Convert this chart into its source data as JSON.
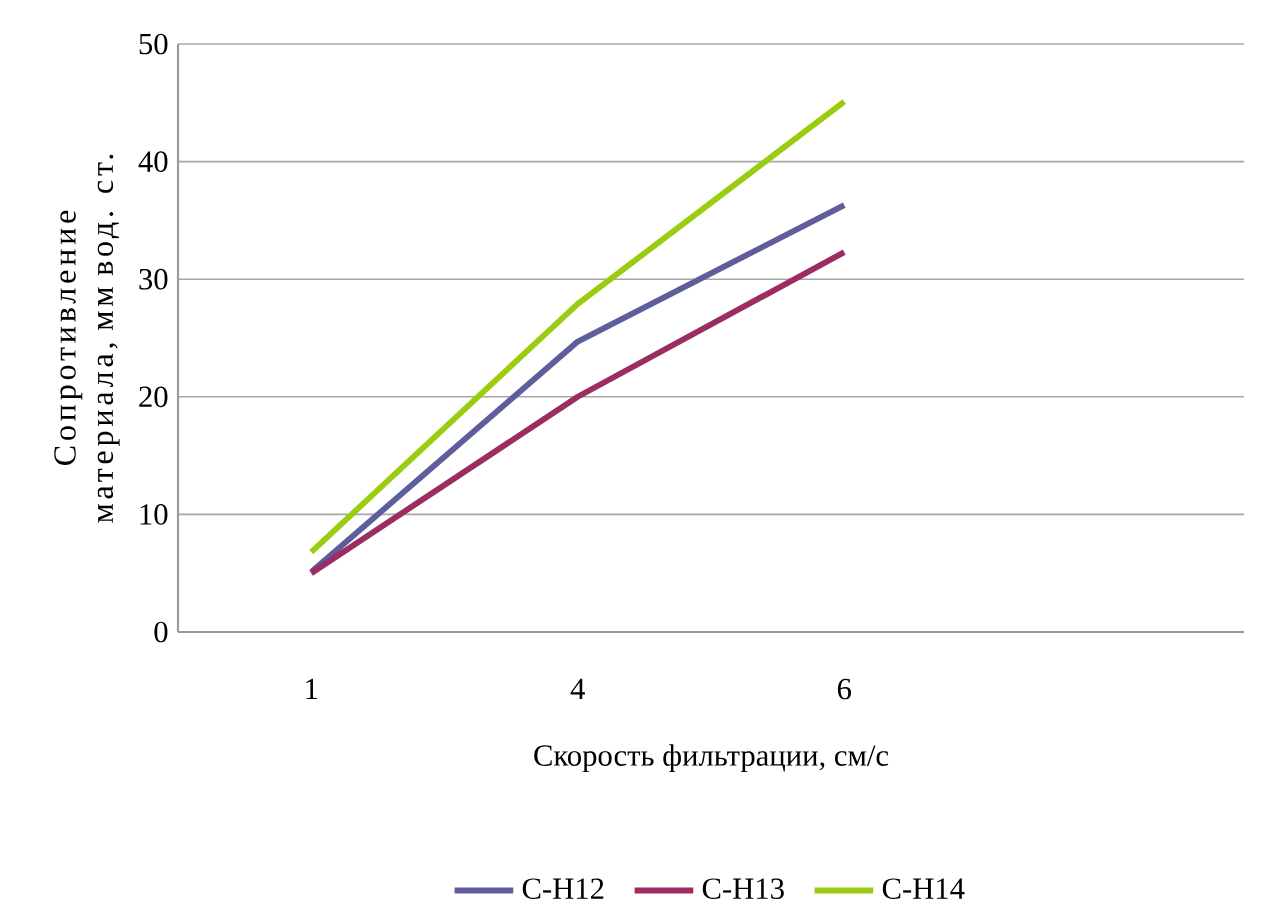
{
  "chart_data": {
    "type": "line",
    "xlabel": "Скорость фильтрации, см/с",
    "ylabel": "Сопротивление материала, мм вод. ст.",
    "categories": [
      "1",
      "4",
      "6",
      null
    ],
    "series": [
      {
        "name": "С-Н12",
        "color": "#5e5e9c",
        "values": [
          5.1,
          24.7,
          36.3,
          null
        ]
      },
      {
        "name": "С-Н13",
        "color": "#9b2d62",
        "values": [
          5.0,
          20.0,
          32.3,
          null
        ]
      },
      {
        "name": "С-Н14",
        "color": "#9ccc10",
        "values": [
          6.8,
          27.9,
          45.1,
          null
        ]
      }
    ],
    "ylim": [
      0,
      50
    ],
    "yticks": [
      0,
      10,
      20,
      30,
      40,
      50
    ],
    "grid": "y",
    "legend": "bottom",
    "marker": "none",
    "line_style": "solid"
  }
}
